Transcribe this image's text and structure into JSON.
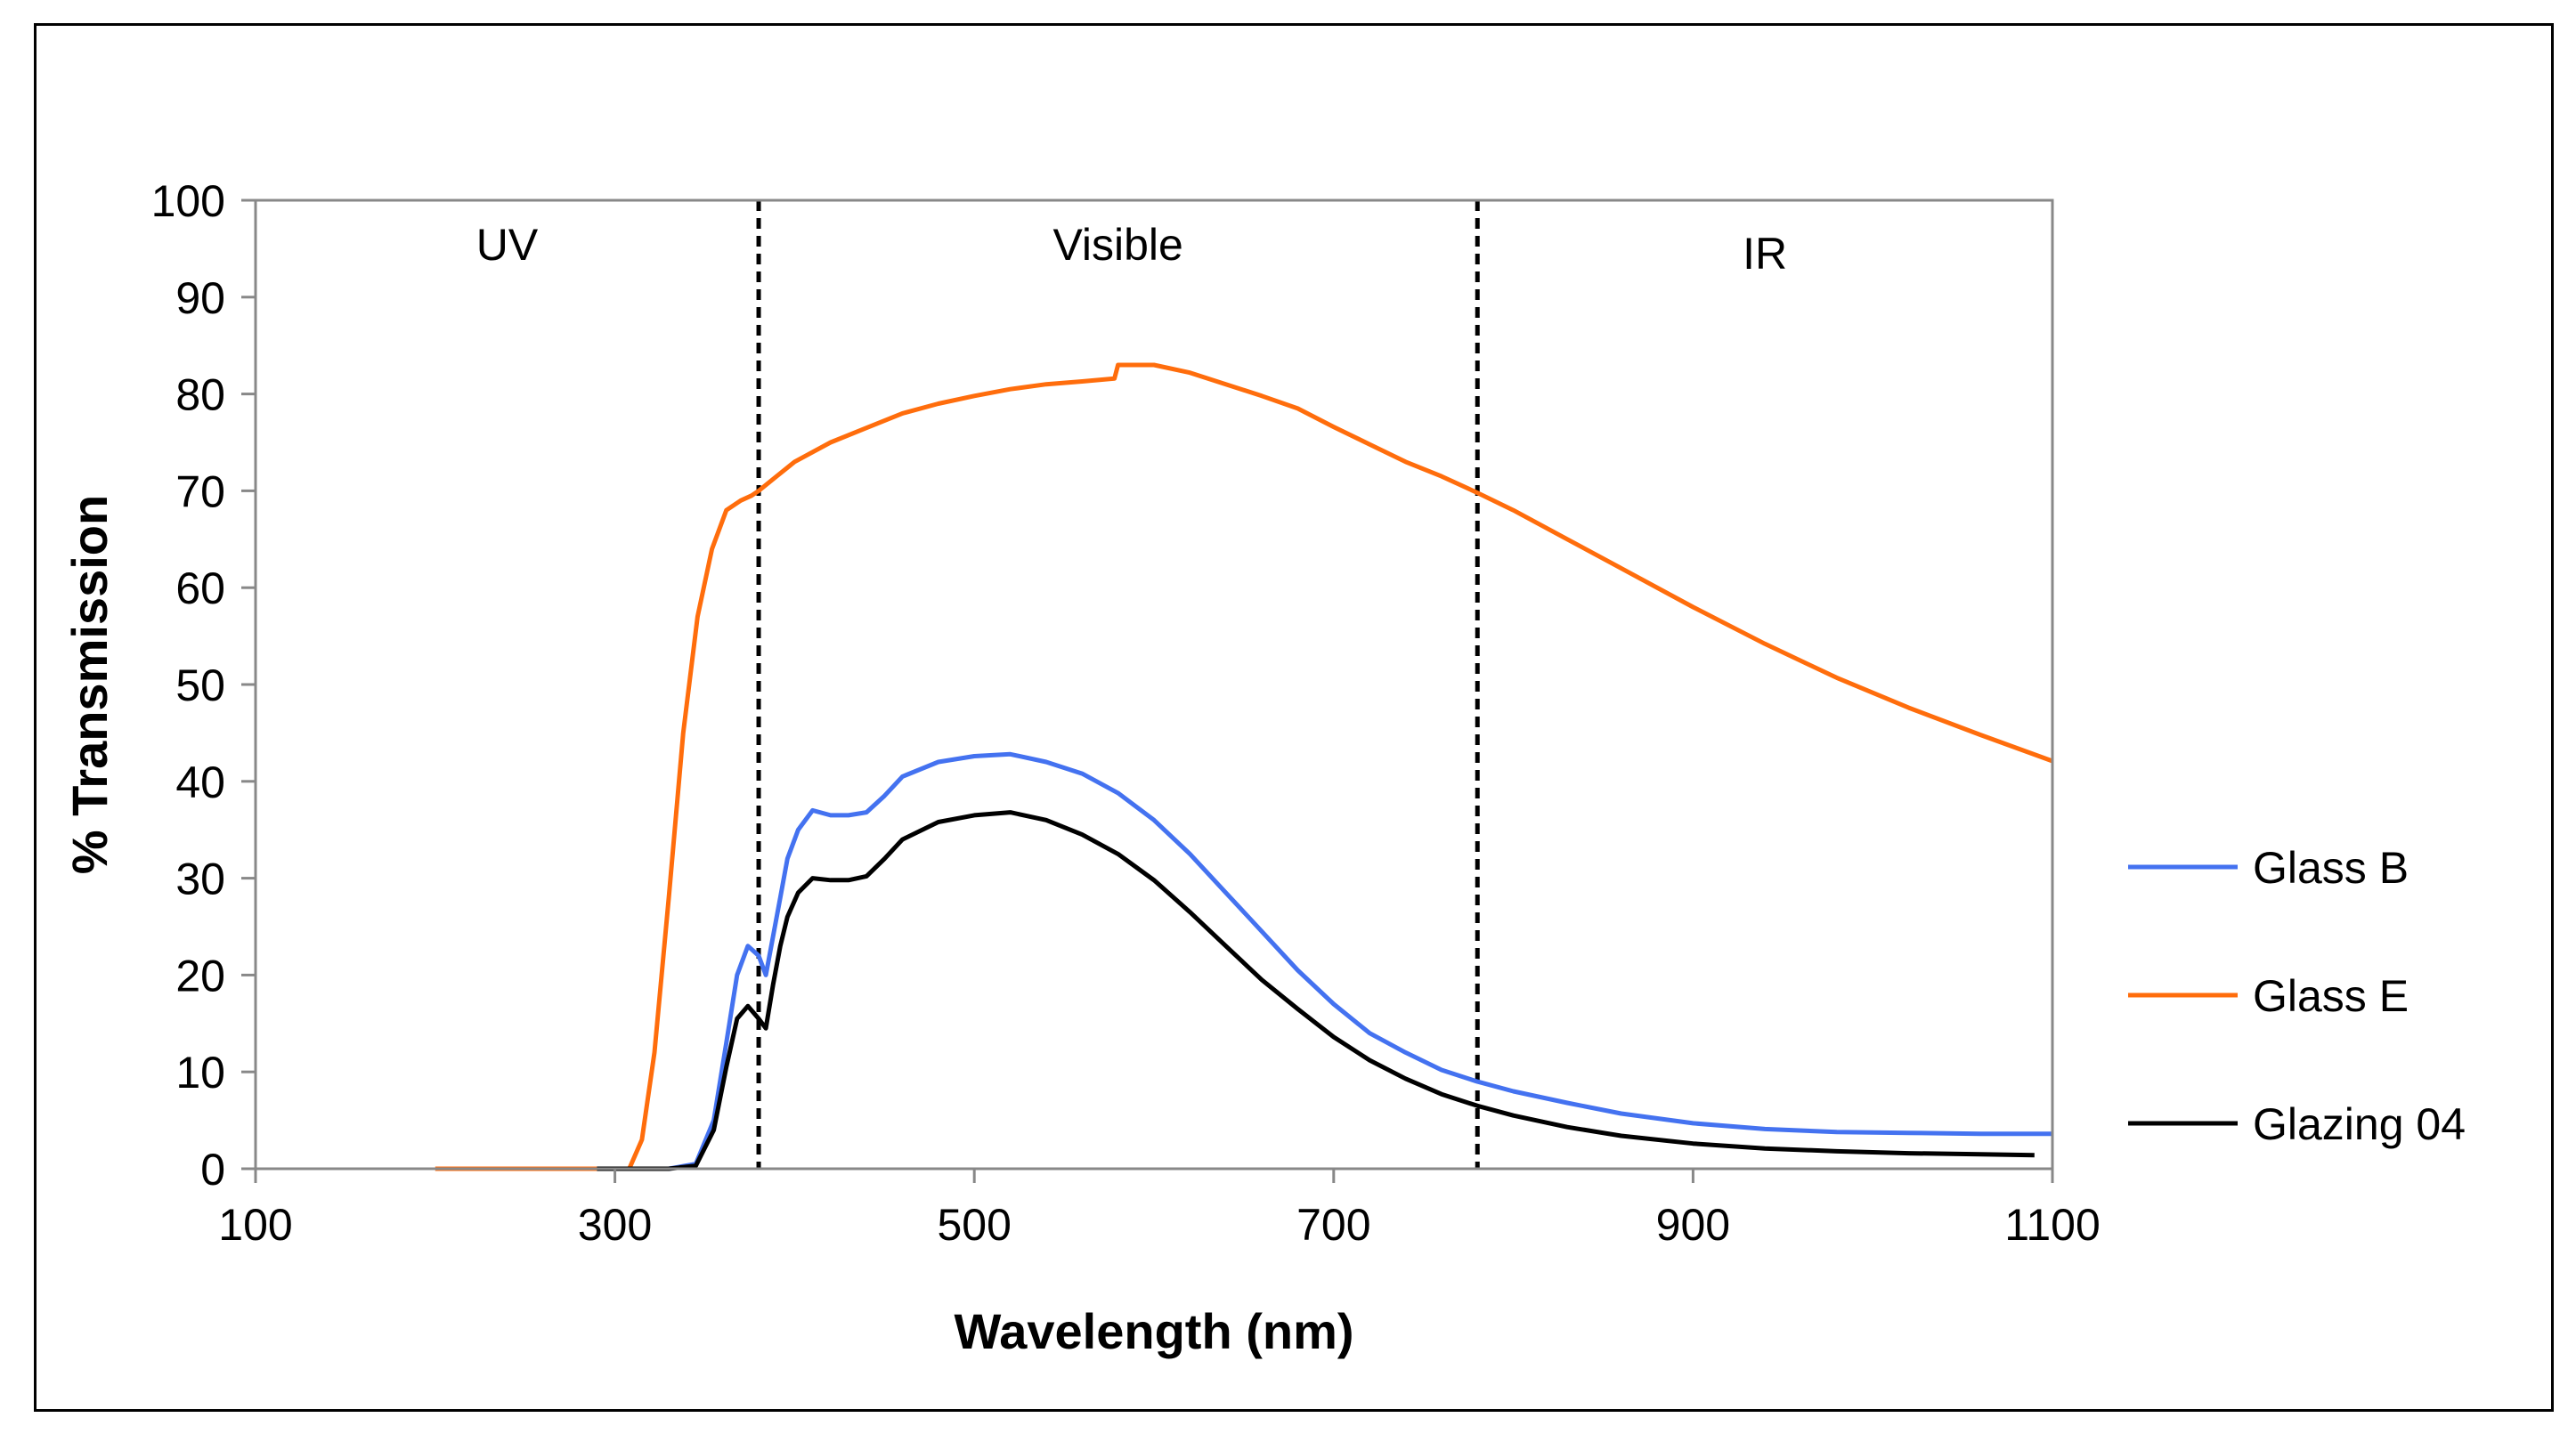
{
  "chart_data": {
    "type": "line",
    "title": "",
    "xlabel": "Wavelength (nm)",
    "ylabel": "% Transmission",
    "xlim": [
      100,
      1100
    ],
    "ylim": [
      0,
      100
    ],
    "xticks": [
      100,
      300,
      500,
      700,
      900,
      1100
    ],
    "yticks": [
      0,
      10,
      20,
      30,
      40,
      50,
      60,
      70,
      80,
      90,
      100
    ],
    "grid": false,
    "legend_position": "right",
    "regions": [
      {
        "label": "UV",
        "x_center": 240
      },
      {
        "label": "Visible",
        "x_center": 580
      },
      {
        "label": "IR",
        "x_center": 940
      }
    ],
    "boundaries": [
      380,
      780
    ],
    "series": [
      {
        "name": "Glass B",
        "color": "#4472f0",
        "points": [
          [
            290,
            0
          ],
          [
            330,
            0
          ],
          [
            345,
            0.5
          ],
          [
            355,
            5
          ],
          [
            362,
            13
          ],
          [
            368,
            20
          ],
          [
            374,
            23
          ],
          [
            380,
            22
          ],
          [
            384,
            20
          ],
          [
            388,
            24
          ],
          [
            392,
            28
          ],
          [
            396,
            32
          ],
          [
            402,
            35
          ],
          [
            410,
            37
          ],
          [
            420,
            36.5
          ],
          [
            430,
            36.5
          ],
          [
            440,
            36.8
          ],
          [
            450,
            38.5
          ],
          [
            460,
            40.5
          ],
          [
            480,
            42
          ],
          [
            500,
            42.6
          ],
          [
            520,
            42.8
          ],
          [
            540,
            42
          ],
          [
            560,
            40.8
          ],
          [
            580,
            38.8
          ],
          [
            600,
            36
          ],
          [
            620,
            32.5
          ],
          [
            640,
            28.5
          ],
          [
            660,
            24.5
          ],
          [
            680,
            20.5
          ],
          [
            700,
            17
          ],
          [
            720,
            14
          ],
          [
            740,
            12
          ],
          [
            760,
            10.2
          ],
          [
            780,
            9
          ],
          [
            800,
            8
          ],
          [
            830,
            6.8
          ],
          [
            860,
            5.7
          ],
          [
            900,
            4.7
          ],
          [
            940,
            4.1
          ],
          [
            980,
            3.8
          ],
          [
            1020,
            3.7
          ],
          [
            1060,
            3.6
          ],
          [
            1100,
            3.6
          ]
        ]
      },
      {
        "name": "Glass E",
        "color": "#ff6d0c",
        "points": [
          [
            200,
            0
          ],
          [
            290,
            0
          ],
          [
            308,
            0
          ],
          [
            315,
            3
          ],
          [
            322,
            12
          ],
          [
            330,
            28
          ],
          [
            338,
            45
          ],
          [
            346,
            57
          ],
          [
            354,
            64
          ],
          [
            362,
            68
          ],
          [
            370,
            69
          ],
          [
            376,
            69.5
          ],
          [
            380,
            70
          ],
          [
            390,
            71.5
          ],
          [
            400,
            73
          ],
          [
            420,
            75
          ],
          [
            440,
            76.5
          ],
          [
            460,
            78
          ],
          [
            480,
            79
          ],
          [
            500,
            79.8
          ],
          [
            520,
            80.5
          ],
          [
            540,
            81
          ],
          [
            560,
            81.3
          ],
          [
            578,
            81.6
          ],
          [
            580,
            83
          ],
          [
            600,
            83
          ],
          [
            620,
            82.2
          ],
          [
            640,
            81
          ],
          [
            660,
            79.8
          ],
          [
            680,
            78.5
          ],
          [
            700,
            76.6
          ],
          [
            720,
            74.8
          ],
          [
            740,
            73
          ],
          [
            760,
            71.5
          ],
          [
            780,
            69.8
          ],
          [
            800,
            68
          ],
          [
            830,
            65
          ],
          [
            860,
            62
          ],
          [
            900,
            58
          ],
          [
            940,
            54.2
          ],
          [
            980,
            50.7
          ],
          [
            1020,
            47.6
          ],
          [
            1060,
            44.8
          ],
          [
            1100,
            42.1
          ]
        ]
      },
      {
        "name": "Glazing 04",
        "color": "#000000",
        "points": [
          [
            290,
            0
          ],
          [
            330,
            0
          ],
          [
            345,
            0.3
          ],
          [
            355,
            4
          ],
          [
            362,
            10.5
          ],
          [
            368,
            15.5
          ],
          [
            374,
            16.8
          ],
          [
            380,
            15.5
          ],
          [
            384,
            14.5
          ],
          [
            388,
            19
          ],
          [
            392,
            23
          ],
          [
            396,
            26
          ],
          [
            402,
            28.5
          ],
          [
            410,
            30
          ],
          [
            420,
            29.8
          ],
          [
            430,
            29.8
          ],
          [
            440,
            30.2
          ],
          [
            450,
            32
          ],
          [
            460,
            34
          ],
          [
            480,
            35.8
          ],
          [
            500,
            36.5
          ],
          [
            520,
            36.8
          ],
          [
            540,
            36
          ],
          [
            560,
            34.5
          ],
          [
            580,
            32.5
          ],
          [
            600,
            29.8
          ],
          [
            620,
            26.5
          ],
          [
            640,
            23
          ],
          [
            660,
            19.5
          ],
          [
            680,
            16.5
          ],
          [
            700,
            13.6
          ],
          [
            720,
            11.2
          ],
          [
            740,
            9.3
          ],
          [
            760,
            7.7
          ],
          [
            780,
            6.5
          ],
          [
            800,
            5.5
          ],
          [
            830,
            4.3
          ],
          [
            860,
            3.4
          ],
          [
            900,
            2.6
          ],
          [
            940,
            2.1
          ],
          [
            980,
            1.8
          ],
          [
            1020,
            1.6
          ],
          [
            1060,
            1.5
          ],
          [
            1090,
            1.4
          ]
        ]
      }
    ]
  }
}
